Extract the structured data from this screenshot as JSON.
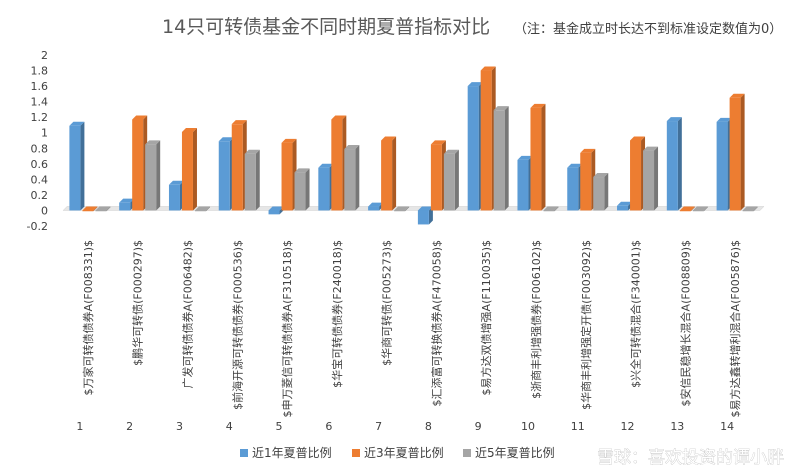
{
  "chart_data": {
    "type": "bar",
    "title": "14只可转债基金不同时期夏普指标对比",
    "subtitle": "（注：基金成立时长达不到标准设定数值为0）",
    "ylim": [
      -0.2,
      2
    ],
    "yticks": [
      "2",
      "1.8",
      "1.6",
      "1.4",
      "1.2",
      "1",
      "0.8",
      "0.6",
      "0.4",
      "0.2",
      "0",
      "-0.2"
    ],
    "categories": [
      "$万家可转债债券A(F008331)$",
      "$鹏华可转债(F000297)$",
      "广发可转债债券A(F006482)$",
      "$前海开源可转债债券(F000536)$",
      "$申万菱信可转债债券A(F310518)$",
      "$华宝可转债债券(F240018)$",
      "$华商可转债(F005273)$",
      "$汇添富可转换债券A(F470058)$",
      "$易方达双债增强A(F110035)$",
      "$浙商丰利增强债券(F006102)$",
      "$华商丰利增强定开债(F003092)$",
      "$兴全可转债混合(F340001)$",
      "$安信民稳增长混合A(F008809)$",
      "$易方达鑫转增利混合A(F005876)$"
    ],
    "indices": [
      "1",
      "2",
      "3",
      "4",
      "5",
      "6",
      "7",
      "8",
      "9",
      "10",
      "11",
      "12",
      "13",
      "14"
    ],
    "series": [
      {
        "name": "近1年夏普比例",
        "color": "#5b9bd5",
        "values": [
          1.09,
          0.1,
          0.33,
          0.89,
          -0.05,
          0.55,
          0.05,
          -0.18,
          1.6,
          0.65,
          0.55,
          0.06,
          1.15,
          1.14
        ]
      },
      {
        "name": "近3年夏普比例",
        "color": "#ed7d31",
        "values": [
          0,
          1.17,
          1.01,
          1.11,
          0.87,
          1.17,
          0.9,
          0.85,
          1.8,
          1.32,
          0.74,
          0.9,
          0,
          1.45
        ]
      },
      {
        "name": "近5年夏普比例",
        "color": "#a5a5a5",
        "values": [
          0,
          0.85,
          0,
          0.73,
          0.49,
          0.79,
          0,
          0.73,
          1.29,
          0,
          0.43,
          0.77,
          0,
          0
        ]
      }
    ],
    "legend_position": "bottom",
    "grid": false
  },
  "watermark": "雪球：喜欢投资的谭小胖"
}
